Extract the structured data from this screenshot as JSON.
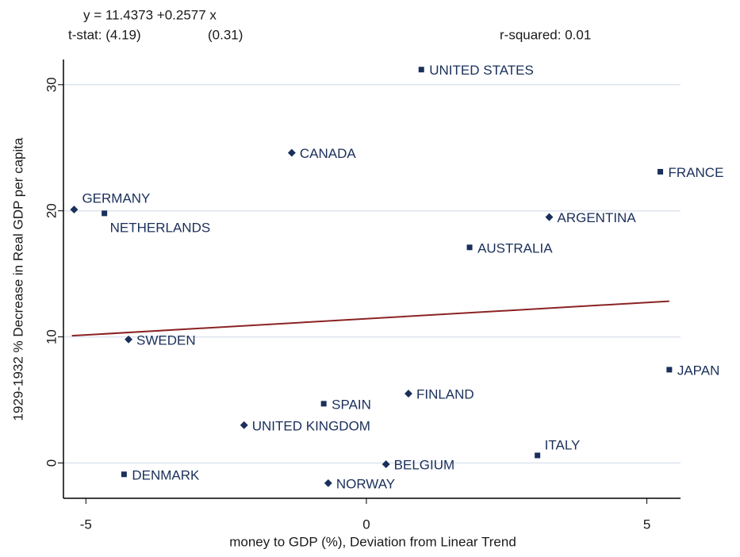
{
  "chart_data": {
    "type": "scatter",
    "equation": "y = 11.4373 +0.2577 x",
    "tstat": "t-stat: (4.19)",
    "tstat_slope": "(0.31)",
    "rsquared": "r-squared: 0.01",
    "x_label": "money to GDP (%), Deviation from Linear Trend",
    "y_label": "1929-1932 % Decrease in Real GDP  per capita",
    "labels": [
      "UNITED STATES",
      "CANADA",
      "FRANCE",
      "GERMANY",
      "NETHERLANDS",
      "ARGENTINA",
      "AUSTRALIA",
      "SWEDEN",
      "JAPAN",
      "FINLAND",
      "SPAIN",
      "UNITED KINGDOM",
      "ITALY",
      "BELGIUM",
      "DENMARK",
      "NORWAY"
    ],
    "x": [
      0.98,
      -1.33,
      5.24,
      -5.21,
      -4.67,
      3.26,
      1.84,
      -4.24,
      5.4,
      0.75,
      -0.76,
      -2.18,
      3.05,
      0.35,
      -4.32,
      -0.68
    ],
    "y": [
      31.2,
      24.6,
      23.1,
      20.1,
      19.8,
      19.5,
      17.1,
      9.8,
      7.4,
      5.5,
      4.7,
      3.0,
      0.6,
      -0.1,
      -0.9,
      -1.6
    ],
    "color": "#1a2f5a",
    "fit": {
      "x": [
        -5.25,
        5.4
      ],
      "y": [
        10.09,
        12.83
      ],
      "color": "#8b2323"
    },
    "xlim": [
      -5.4,
      5.6
    ],
    "ylim": [
      -2.8,
      32
    ],
    "xticks": [
      -5,
      0,
      5
    ],
    "yticks": [
      0,
      10,
      20,
      30
    ],
    "grid": true
  }
}
